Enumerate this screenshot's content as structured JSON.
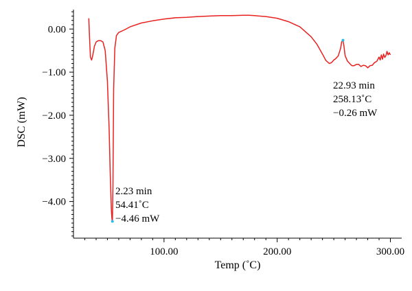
{
  "chart_data": {
    "type": "line",
    "xlabel": "Temp (˚C)",
    "ylabel": "DSC (mW)",
    "xlim": [
      20,
      310
    ],
    "ylim": [
      -4.85,
      0.45
    ],
    "x_ticks": [
      {
        "value": 100,
        "label": "100.00"
      },
      {
        "value": 200,
        "label": "200.00"
      },
      {
        "value": 300,
        "label": "300.00"
      }
    ],
    "y_ticks": [
      {
        "value": 0,
        "label": "0.00"
      },
      {
        "value": -1,
        "label": "−1.00"
      },
      {
        "value": -2,
        "label": "−2.00"
      },
      {
        "value": -3,
        "label": "−3.00"
      },
      {
        "value": -4,
        "label": "−4.00"
      }
    ],
    "grid": false,
    "series": [
      {
        "color": "#e8201f",
        "x": [
          33.5,
          34.2,
          35,
          36,
          37,
          38.5,
          40,
          42,
          44,
          46,
          48,
          50,
          51.5,
          52.5,
          53.5,
          54,
          54.41,
          54.9,
          55.5,
          56.5,
          58,
          60,
          65,
          70,
          80,
          90,
          100,
          110,
          120,
          130,
          140,
          150,
          160,
          170,
          175,
          180,
          190,
          200,
          210,
          220,
          230,
          235,
          240,
          243,
          246,
          248,
          250,
          252,
          254,
          256,
          257,
          258.13,
          259,
          260,
          262,
          264,
          266,
          268,
          270,
          272,
          274,
          276,
          278,
          280,
          282,
          284,
          286,
          288,
          290,
          291,
          292,
          293,
          294,
          295,
          296,
          297,
          298,
          299,
          300
        ],
        "y": [
          0.25,
          -0.2,
          -0.65,
          -0.72,
          -0.62,
          -0.4,
          -0.3,
          -0.27,
          -0.27,
          -0.3,
          -0.5,
          -1.2,
          -2.3,
          -3.4,
          -4.2,
          -4.4,
          -4.46,
          -3.6,
          -1.4,
          -0.45,
          -0.15,
          -0.08,
          -0.02,
          0.05,
          0.14,
          0.19,
          0.23,
          0.26,
          0.27,
          0.29,
          0.3,
          0.31,
          0.31,
          0.32,
          0.32,
          0.31,
          0.29,
          0.25,
          0.17,
          0.05,
          -0.18,
          -0.35,
          -0.58,
          -0.73,
          -0.8,
          -0.78,
          -0.72,
          -0.68,
          -0.62,
          -0.45,
          -0.3,
          -0.26,
          -0.4,
          -0.62,
          -0.74,
          -0.8,
          -0.85,
          -0.85,
          -0.82,
          -0.82,
          -0.87,
          -0.84,
          -0.85,
          -0.9,
          -0.85,
          -0.84,
          -0.78,
          -0.75,
          -0.65,
          -0.72,
          -0.6,
          -0.7,
          -0.58,
          -0.66,
          -0.62,
          -0.52,
          -0.6,
          -0.55,
          -0.6
        ]
      }
    ],
    "markers": [
      {
        "x": 54.41,
        "y": -4.46,
        "color": "#2bbde6"
      },
      {
        "x": 258.13,
        "y": -0.26,
        "color": "#2bbde6"
      }
    ],
    "annotations": [
      {
        "lines": [
          "2.23 min",
          "54.41˚C",
          "−4.46 mW"
        ]
      },
      {
        "lines": [
          "22.93 min",
          "258.13˚C",
          "−0.26 mW"
        ]
      }
    ]
  }
}
